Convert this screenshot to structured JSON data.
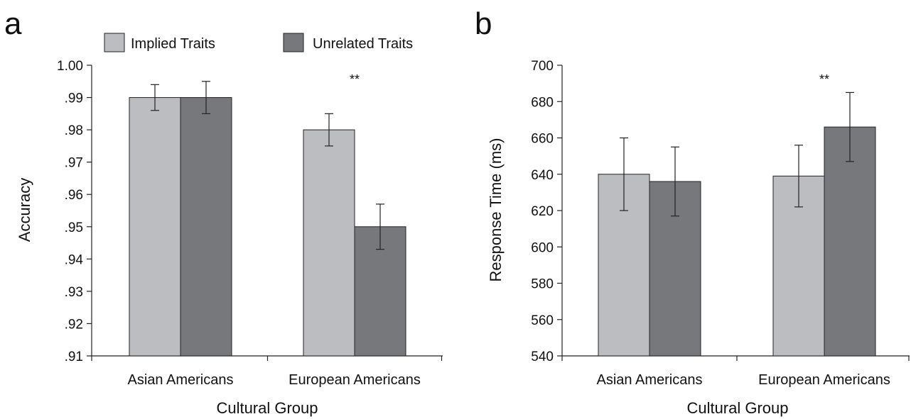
{
  "panels": [
    {
      "letter": "a"
    },
    {
      "letter": "b"
    }
  ],
  "legend": [
    {
      "label": "Implied Traits",
      "color": "#bcbdc1"
    },
    {
      "label": "Unrelated Traits",
      "color": "#77787c"
    }
  ],
  "chart_data": [
    {
      "type": "bar",
      "categories": [
        "Asian Americans",
        "European Americans"
      ],
      "series": [
        {
          "name": "Implied Traits",
          "color": "#bcbdc1",
          "values": [
            0.99,
            0.98
          ],
          "errors": [
            0.004,
            0.005
          ]
        },
        {
          "name": "Unrelated Traits",
          "color": "#77787c",
          "values": [
            0.99,
            0.95
          ],
          "errors": [
            0.005,
            0.007
          ]
        }
      ],
      "xlabel": "Cultural Group",
      "ylabel": "Accuracy",
      "ylim": [
        0.91,
        1.0
      ],
      "yticks": [
        0.91,
        0.92,
        0.93,
        0.94,
        0.95,
        0.96,
        0.97,
        0.98,
        0.99,
        1.0
      ],
      "ytick_labels": [
        ".91",
        ".92",
        ".93",
        ".94",
        ".95",
        ".96",
        ".97",
        ".98",
        ".99",
        "1.00"
      ],
      "annotations": [
        {
          "category": "European Americans",
          "text": "**"
        }
      ],
      "grid": false
    },
    {
      "type": "bar",
      "categories": [
        "Asian Americans",
        "European Americans"
      ],
      "series": [
        {
          "name": "Implied Traits",
          "color": "#bcbdc1",
          "values": [
            640,
            639
          ],
          "errors": [
            20,
            17
          ]
        },
        {
          "name": "Unrelated Traits",
          "color": "#77787c",
          "values": [
            636,
            666
          ],
          "errors": [
            19,
            19
          ]
        }
      ],
      "xlabel": "Cultural Group",
      "ylabel": "Response Time (ms)",
      "ylim": [
        540,
        700
      ],
      "yticks": [
        540,
        560,
        580,
        600,
        620,
        640,
        660,
        680,
        700
      ],
      "ytick_labels": [
        "540",
        "560",
        "580",
        "600",
        "620",
        "640",
        "660",
        "680",
        "700"
      ],
      "annotations": [
        {
          "category": "European Americans",
          "text": "**"
        }
      ],
      "grid": false
    }
  ]
}
